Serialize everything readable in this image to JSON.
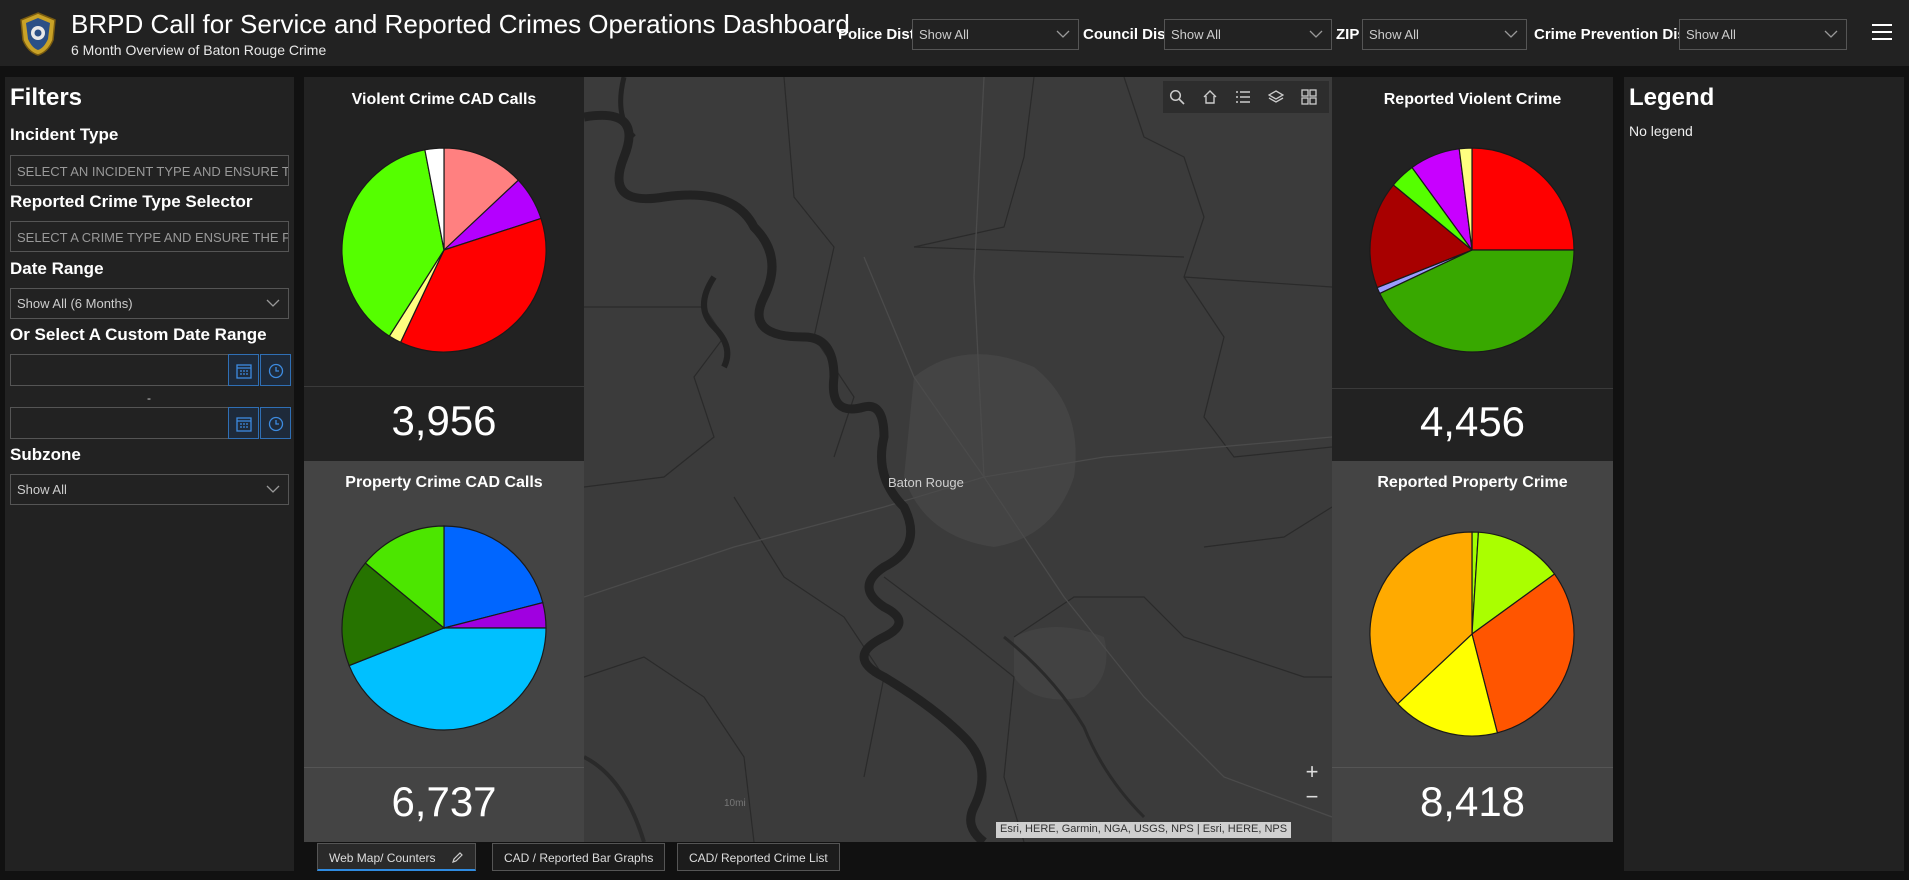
{
  "header": {
    "title": "BRPD Call for Service and Reported Crimes Operations Dashboard",
    "subtitle": "6 Month Overview of Baton Rouge Crime",
    "selectors": [
      {
        "label": "Police Dist",
        "value": "Show All"
      },
      {
        "label": "Council Dist",
        "value": "Show All"
      },
      {
        "label": "ZIP",
        "value": "Show All"
      },
      {
        "label": "Crime Prevention Dist",
        "value": "Show All"
      }
    ]
  },
  "filters": {
    "title": "Filters",
    "incident_type_label": "Incident Type",
    "incident_type_placeholder": "SELECT AN INCIDENT TYPE AND ENSURE T...",
    "crime_type_label": "Reported Crime Type Selector",
    "crime_type_placeholder": "SELECT A CRIME TYPE AND ENSURE THE P...",
    "date_range_label": "Date Range",
    "date_range_value": "Show All (6 Months)",
    "custom_range_label": "Or Select A Custom Date Range",
    "date_separator": "-",
    "subzone_label": "Subzone",
    "subzone_value": "Show All"
  },
  "panels": {
    "violent_cad": {
      "title": "Violent Crime CAD Calls",
      "count": "3,956"
    },
    "property_cad": {
      "title": "Property Crime CAD Calls",
      "count": "6,737"
    },
    "reported_violent": {
      "title": "Reported Violent Crime",
      "count": "4,456"
    },
    "reported_property": {
      "title": "Reported Property Crime",
      "count": "8,418"
    }
  },
  "map": {
    "city_label": "Baton Rouge",
    "scale_label": "10mi",
    "zoom_in": "+",
    "zoom_out": "−",
    "attribution": "Esri, HERE, Garmin, NGA, USGS, NPS | Esri, HERE, NPS"
  },
  "legend": {
    "title": "Legend",
    "empty_text": "No legend"
  },
  "tabs": [
    {
      "label": "Web Map/ Counters"
    },
    {
      "label": "CAD / Reported Bar Graphs"
    },
    {
      "label": "CAD/ Reported Crime List"
    }
  ],
  "chart_data": [
    {
      "type": "pie",
      "title": "Violent Crime CAD Calls",
      "slices": [
        {
          "value": 13,
          "color": "#ff8080"
        },
        {
          "value": 7,
          "color": "#b400ff"
        },
        {
          "value": 37,
          "color": "#ff0000"
        },
        {
          "value": 2,
          "color": "#ffff80"
        },
        {
          "value": 38,
          "color": "#55ff00"
        },
        {
          "value": 3,
          "color": "#ffffff"
        }
      ]
    },
    {
      "type": "pie",
      "title": "Property Crime CAD Calls",
      "slices": [
        {
          "value": 21,
          "color": "#0066ff"
        },
        {
          "value": 4,
          "color": "#a000e0"
        },
        {
          "value": 44,
          "color": "#00c0ff"
        },
        {
          "value": 17,
          "color": "#267300"
        },
        {
          "value": 14,
          "color": "#4ce600"
        }
      ]
    },
    {
      "type": "pie",
      "title": "Reported Violent Crime",
      "slices": [
        {
          "value": 25,
          "color": "#ff0000"
        },
        {
          "value": 43,
          "color": "#38a800"
        },
        {
          "value": 1,
          "color": "#9c9cff"
        },
        {
          "value": 17,
          "color": "#a80000"
        },
        {
          "value": 4,
          "color": "#55ff00"
        },
        {
          "value": 8,
          "color": "#c800ff"
        },
        {
          "value": 2,
          "color": "#ffff80"
        }
      ]
    },
    {
      "type": "pie",
      "title": "Reported Property Crime",
      "slices": [
        {
          "value": 1,
          "color": "#a0ff00"
        },
        {
          "value": 14,
          "color": "#aaff00"
        },
        {
          "value": 31,
          "color": "#ff5500"
        },
        {
          "value": 17,
          "color": "#ffff00"
        },
        {
          "value": 37,
          "color": "#ffaa00"
        }
      ]
    }
  ]
}
